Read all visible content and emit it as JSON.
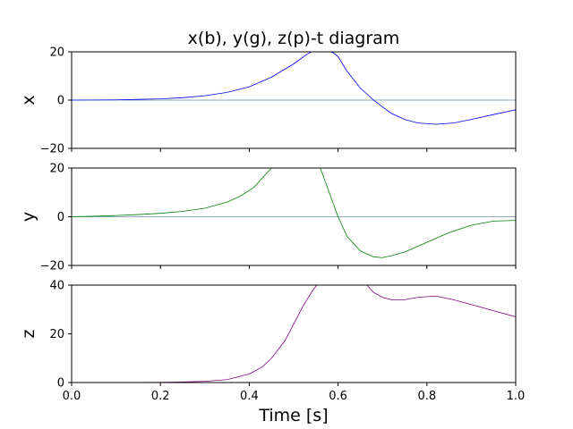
{
  "chart_data": {
    "type": "line",
    "title": "x(b), y(g), z(p)-t diagram",
    "xlabel": "Time [s]",
    "xlim": [
      0.0,
      1.0
    ],
    "xticks": [
      "0.0",
      "0.2",
      "0.4",
      "0.6",
      "0.8",
      "1.0"
    ],
    "subplots": [
      {
        "ylabel": "x",
        "ylim": [
          -20,
          20
        ],
        "yticks": [
          "20",
          "0",
          "−20"
        ],
        "zero_line": true,
        "series": [
          {
            "color": "#0000ff",
            "x": [
              0.0,
              0.05,
              0.1,
              0.15,
              0.2,
              0.25,
              0.3,
              0.35,
              0.4,
              0.45,
              0.5,
              0.53,
              0.55,
              0.57,
              0.59,
              0.6,
              0.62,
              0.65,
              0.68,
              0.7,
              0.72,
              0.75,
              0.78,
              0.82,
              0.86,
              0.9,
              0.95,
              1.0
            ],
            "y": [
              0.0,
              0.05,
              0.1,
              0.3,
              0.5,
              1.0,
              1.8,
              3.2,
              5.5,
              9.5,
              15.0,
              19.0,
              21.0,
              21.0,
              19.5,
              18.0,
              12.0,
              5.0,
              0.0,
              -2.8,
              -5.5,
              -8.0,
              -9.5,
              -10.0,
              -9.5,
              -8.0,
              -6.0,
              -4.0
            ]
          }
        ]
      },
      {
        "ylabel": "y",
        "ylim": [
          -20,
          20
        ],
        "yticks": [
          "20",
          "0",
          "−20"
        ],
        "zero_line": true,
        "series": [
          {
            "color": "#008000",
            "x": [
              0.0,
              0.05,
              0.1,
              0.15,
              0.2,
              0.25,
              0.3,
              0.35,
              0.38,
              0.41,
              0.43,
              0.45,
              0.46,
              0.5,
              0.55,
              0.56,
              0.57,
              0.58,
              0.6,
              0.62,
              0.65,
              0.68,
              0.7,
              0.72,
              0.75,
              0.8,
              0.85,
              0.9,
              0.95,
              1.0
            ],
            "y": [
              0.0,
              0.2,
              0.5,
              0.9,
              1.4,
              2.2,
              3.5,
              6.0,
              8.5,
              12.0,
              16.0,
              20.0,
              23.0,
              35.0,
              30.0,
              20.0,
              15.0,
              10.0,
              0.0,
              -8.0,
              -14.0,
              -16.5,
              -16.8,
              -16.0,
              -14.5,
              -10.5,
              -6.5,
              -3.5,
              -1.8,
              -1.5
            ]
          }
        ]
      },
      {
        "ylabel": "z",
        "ylim": [
          0,
          40
        ],
        "yticks": [
          "40",
          "20",
          "0"
        ],
        "zero_line": false,
        "series": [
          {
            "color": "#800080",
            "x": [
              0.0,
              0.1,
              0.2,
              0.25,
              0.3,
              0.35,
              0.4,
              0.43,
              0.45,
              0.48,
              0.5,
              0.52,
              0.54,
              0.56,
              0.6,
              0.64,
              0.66,
              0.67,
              0.68,
              0.7,
              0.72,
              0.75,
              0.78,
              0.82,
              0.86,
              0.9,
              0.95,
              1.0
            ],
            "y": [
              0.0,
              0.0,
              0.1,
              0.2,
              0.5,
              1.2,
              3.5,
              6.5,
              10.0,
              17.0,
              24.0,
              31.0,
              37.0,
              42.0,
              55.0,
              48.0,
              41.0,
              39.0,
              37.0,
              35.0,
              34.0,
              34.0,
              35.0,
              35.5,
              34.0,
              32.0,
              29.5,
              27.0
            ]
          }
        ]
      }
    ]
  }
}
